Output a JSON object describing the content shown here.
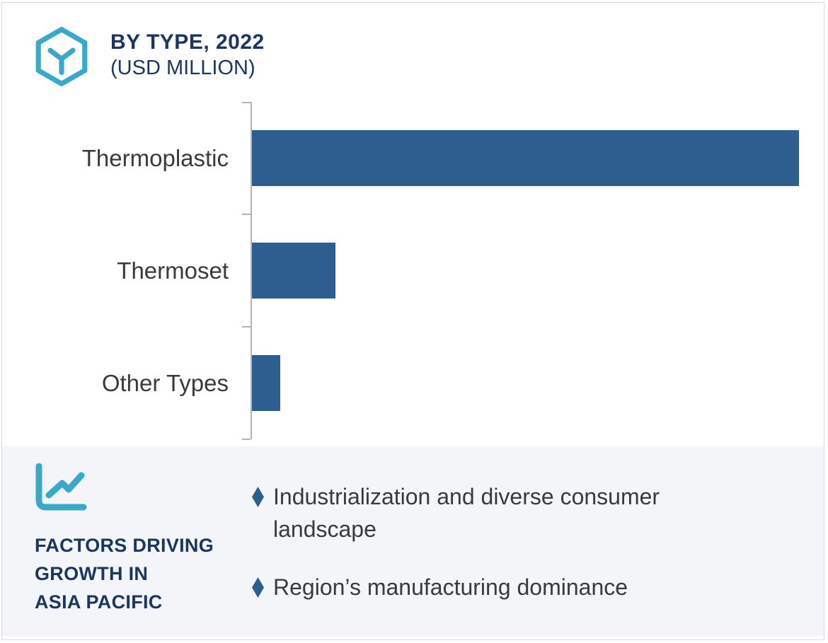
{
  "header": {
    "title": "BY TYPE, 2022",
    "subtitle": "(USD MILLION)",
    "icon": "hexagon-cube-icon"
  },
  "chart_data": {
    "type": "bar",
    "orientation": "horizontal",
    "title": "BY TYPE, 2022 (USD MILLION)",
    "categories": [
      "Thermoplastic",
      "Thermoset",
      "Other Types"
    ],
    "values": [
      774,
      118,
      40
    ],
    "values_note": "no numeric axis, gridlines or data labels are shown; values are relative bar lengths (px), Thermoplastic = 100%, Thermoset = 15.2%, Other Types = 5.2%",
    "xlabel": "",
    "ylabel": "",
    "value_labels_shown": false,
    "gridlines": false,
    "legend": false,
    "bar_color": "#2d5e8f",
    "axis_color": "#b4b4b4"
  },
  "factors": {
    "icon": "line-chart-icon",
    "heading_lines": [
      "FACTORS DRIVING",
      "GROWTH IN",
      "ASIA PACIFIC"
    ],
    "bullets": [
      {
        "text": "Industrialization and diverse consumer landscape"
      },
      {
        "text": "Region’s manufacturing dominance"
      }
    ]
  },
  "colors": {
    "navy": "#1c3664",
    "teal": "#39a8c9",
    "bar_blue": "#2d5e8f",
    "text_dark": "#3a3a3a",
    "section_bg": "#f3f5f9",
    "card_border": "#d9dade",
    "axis_color": "#b4b4b4"
  }
}
